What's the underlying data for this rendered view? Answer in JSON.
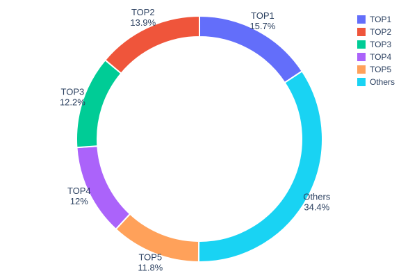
{
  "chart_data": {
    "type": "pie",
    "subtype": "donut",
    "title": "",
    "labels": [
      "TOP1",
      "TOP2",
      "TOP3",
      "TOP4",
      "TOP5",
      "Others"
    ],
    "values": [
      15.7,
      13.9,
      12.2,
      12,
      11.8,
      34.4
    ],
    "percent_labels": [
      "15.7%",
      "13.9%",
      "12%",
      "12%",
      "11.8%",
      "34.4%"
    ],
    "display_percent_labels": [
      "15.7%",
      "13.9%",
      "12.2%",
      "12%",
      "11.8%",
      "34.4%"
    ],
    "colors": [
      "#636efa",
      "#ef553b",
      "#00cc96",
      "#ab63fa",
      "#ffa15a",
      "#19d3f3"
    ],
    "hole": 0.83,
    "label_position": "outside",
    "legend_position": "top-right",
    "text_color": "#2a3f5f",
    "background_color": "#ffffff"
  }
}
